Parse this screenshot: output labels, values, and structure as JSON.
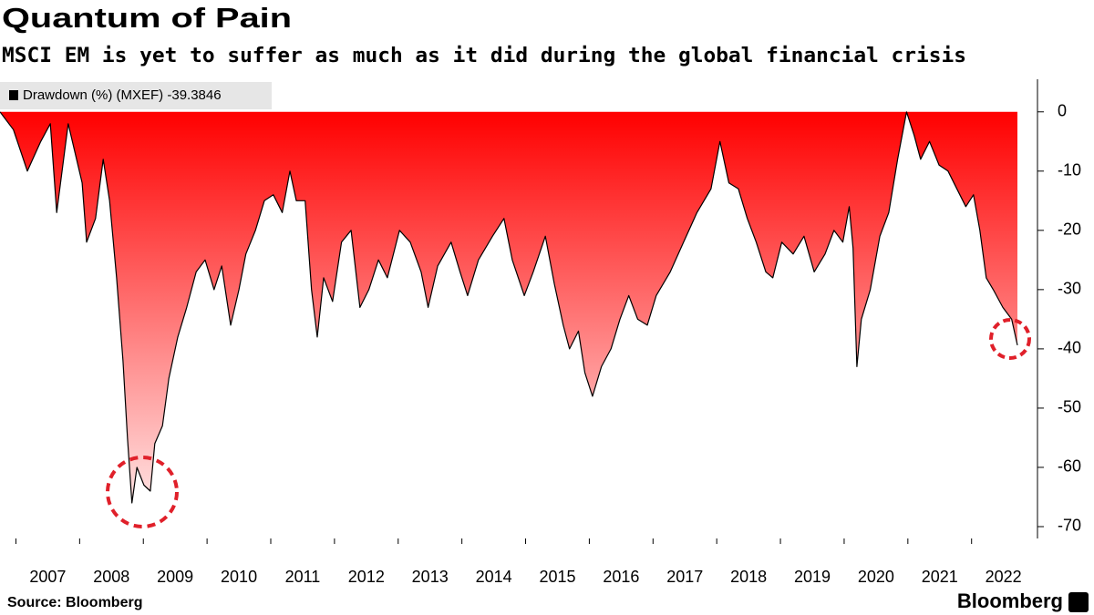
{
  "chart_data": {
    "type": "area",
    "title": "Quantum of Pain",
    "subtitle": "MSCI EM is yet to suffer as much as it did during the global financial crisis",
    "source": "Source: Bloomberg",
    "brand": "Bloomberg",
    "series": [
      {
        "name": "Drawdown (%) (MXEF)",
        "color": "#000000",
        "fill_top": "#ff0000",
        "fill_bottom": "#fff0f0",
        "x": [
          2006.75,
          2006.96,
          2007.18,
          2007.39,
          2007.54,
          2007.64,
          2007.82,
          2008.04,
          2008.11,
          2008.25,
          2008.37,
          2008.47,
          2008.58,
          2008.68,
          2008.75,
          2008.82,
          2008.9,
          2009.01,
          2009.11,
          2009.18,
          2009.3,
          2009.4,
          2009.54,
          2009.68,
          2009.83,
          2009.97,
          2010.11,
          2010.23,
          2010.37,
          2010.5,
          2010.61,
          2010.76,
          2010.9,
          2011.04,
          2011.18,
          2011.3,
          2011.4,
          2011.54,
          2011.64,
          2011.73,
          2011.83,
          2011.97,
          2012.11,
          2012.26,
          2012.4,
          2012.54,
          2012.69,
          2012.83,
          2013.02,
          2013.19,
          2013.36,
          2013.47,
          2013.62,
          2013.83,
          2013.97,
          2014.09,
          2014.26,
          2014.48,
          2014.66,
          2014.79,
          2014.98,
          2015.12,
          2015.31,
          2015.45,
          2015.59,
          2015.69,
          2015.83,
          2015.93,
          2016.05,
          2016.19,
          2016.34,
          2016.48,
          2016.62,
          2016.76,
          2016.91,
          2017.05,
          2017.27,
          2017.48,
          2017.69,
          2017.91,
          2018.05,
          2018.19,
          2018.34,
          2018.48,
          2018.62,
          2018.77,
          2018.88,
          2019.02,
          2019.2,
          2019.37,
          2019.53,
          2019.7,
          2019.84,
          2019.98,
          2020.08,
          2020.14,
          2020.2,
          2020.27,
          2020.41,
          2020.56,
          2020.7,
          2020.84,
          2020.98,
          2021.1,
          2021.2,
          2021.34,
          2021.49,
          2021.63,
          2021.77,
          2021.91,
          2022.03,
          2022.13,
          2022.23,
          2022.34,
          2022.49,
          2022.63,
          2022.72
        ],
        "values": [
          0,
          -3,
          -10,
          -5,
          -2,
          -17,
          -2,
          -12,
          -22,
          -18,
          -8,
          -15,
          -28,
          -42,
          -55,
          -66,
          -60,
          -63,
          -64,
          -56,
          -53,
          -45,
          -38,
          -33,
          -27,
          -25,
          -30,
          -26,
          -36,
          -30,
          -24,
          -20,
          -15,
          -14,
          -17,
          -10,
          -15,
          -15,
          -30,
          -38,
          -28,
          -32,
          -22,
          -20,
          -33,
          -30,
          -25,
          -28,
          -20,
          -22,
          -27,
          -33,
          -26,
          -22,
          -27,
          -31,
          -25,
          -21,
          -18,
          -25,
          -31,
          -27,
          -21,
          -29,
          -36,
          -40,
          -37,
          -44,
          -48,
          -43,
          -40,
          -35,
          -31,
          -35,
          -36,
          -31,
          -27,
          -22,
          -17,
          -13,
          -5,
          -12,
          -13,
          -18,
          -22,
          -27,
          -28,
          -22,
          -24,
          -21,
          -27,
          -24,
          -20,
          -22,
          -16,
          -23,
          -43,
          -35,
          -30,
          -21,
          -17,
          -8,
          0,
          -4,
          -8,
          -5,
          -9,
          -10,
          -13,
          -16,
          -14,
          -20,
          -28,
          -30,
          -33,
          -35,
          -39.3846
        ]
      }
    ],
    "xlim": [
      2006.75,
      2022.92
    ],
    "xticks": [
      2007,
      2008,
      2009,
      2010,
      2011,
      2012,
      2013,
      2014,
      2015,
      2016,
      2017,
      2018,
      2019,
      2020,
      2021,
      2022
    ],
    "ylim": [
      -72,
      5.5
    ],
    "yticks": [
      0,
      -10,
      -20,
      -30,
      -40,
      -50,
      -60,
      -70
    ]
  }
}
